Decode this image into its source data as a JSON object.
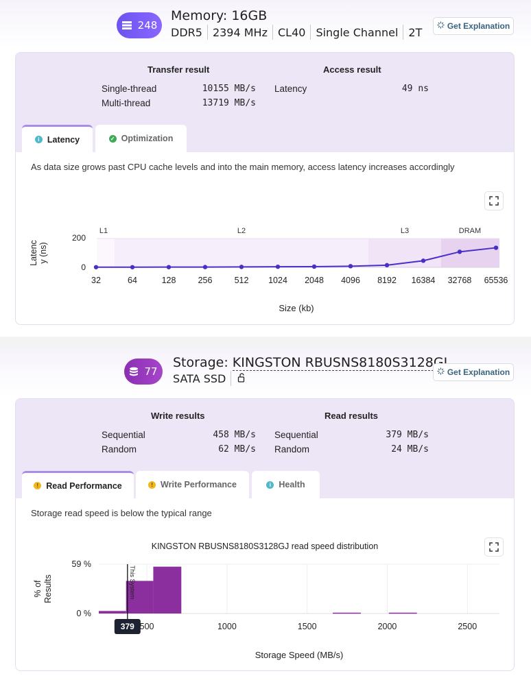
{
  "memory": {
    "badge_value": "248",
    "title": "Memory: 16GB",
    "specs": [
      "DDR5",
      "2394 MHz",
      "CL40",
      "Single Channel",
      "2T"
    ],
    "explain_label": "Get Explanation",
    "transfer_title": "Transfer result",
    "access_title": "Access result",
    "single_label": "Single-thread",
    "single_value": "10155 MB/s",
    "multi_label": "Multi-thread",
    "multi_value": "13719 MB/s",
    "latency_label": "Latency",
    "latency_value": "49 ns",
    "tabs": [
      {
        "label": "Latency",
        "status": "info"
      },
      {
        "label": "Optimization",
        "status": "ok"
      }
    ],
    "description": "As data size grows past CPU cache levels and into the main memory, access latency increases accordingly"
  },
  "storage": {
    "badge_value": "77",
    "title_prefix": "Storage: ",
    "title_model": "KINGSTON RBUSNS8180S3128GJ",
    "type": "SATA SSD",
    "explain_label": "Get Explanation",
    "write_title": "Write results",
    "read_title": "Read results",
    "seq_label": "Sequential",
    "rand_label": "Random",
    "write_seq": "458 MB/s",
    "write_rand": "62 MB/s",
    "read_seq": "379 MB/s",
    "read_rand": "24 MB/s",
    "tabs": [
      {
        "label": "Read Performance",
        "status": "warn"
      },
      {
        "label": "Write Performance",
        "status": "warn"
      },
      {
        "label": "Health",
        "status": "info"
      }
    ],
    "description": "Storage read speed is below the typical range"
  },
  "colors": {
    "latency_line": "#4a2fc7",
    "histogram_bar": "#8b2e9e",
    "marker_bg": "#1c2230"
  },
  "chart_data": [
    {
      "type": "line",
      "title": "",
      "xlabel": "Size (kb)",
      "ylabel": "Latency (ns)",
      "categories": [
        "32",
        "64",
        "128",
        "256",
        "512",
        "1024",
        "2048",
        "4096",
        "8192",
        "16384",
        "32768",
        "65536"
      ],
      "series": [
        {
          "values": [
            1,
            1,
            1.5,
            2,
            3,
            4,
            5,
            8,
            15,
            46,
            108,
            136
          ]
        }
      ],
      "ylim": [
        0,
        200
      ],
      "yticks": [
        "0",
        "200"
      ],
      "regions": [
        "L1",
        "L2",
        "L3",
        "DRAM"
      ],
      "grid": true
    },
    {
      "type": "bar",
      "title": "KINGSTON RBUSNS8180S3128GJ read speed distribution",
      "xlabel": "Storage Speed (MB/s)",
      "ylabel": "% of Results",
      "ytick_labels": [
        "0 %",
        "59 %"
      ],
      "xticks": [
        500,
        1000,
        1500,
        2000,
        2500
      ],
      "xlim": [
        200,
        2700
      ],
      "ylim": [
        0,
        59
      ],
      "bins": [
        {
          "from": 200,
          "to": 370,
          "value": 3
        },
        {
          "from": 370,
          "to": 540,
          "value": 39
        },
        {
          "from": 540,
          "to": 715,
          "value": 56
        },
        {
          "from": 1660,
          "to": 1835,
          "value": 1
        },
        {
          "from": 2010,
          "to": 2185,
          "value": 1
        }
      ],
      "marker": {
        "value": 379,
        "label": "This System",
        "readout": "379"
      }
    }
  ]
}
